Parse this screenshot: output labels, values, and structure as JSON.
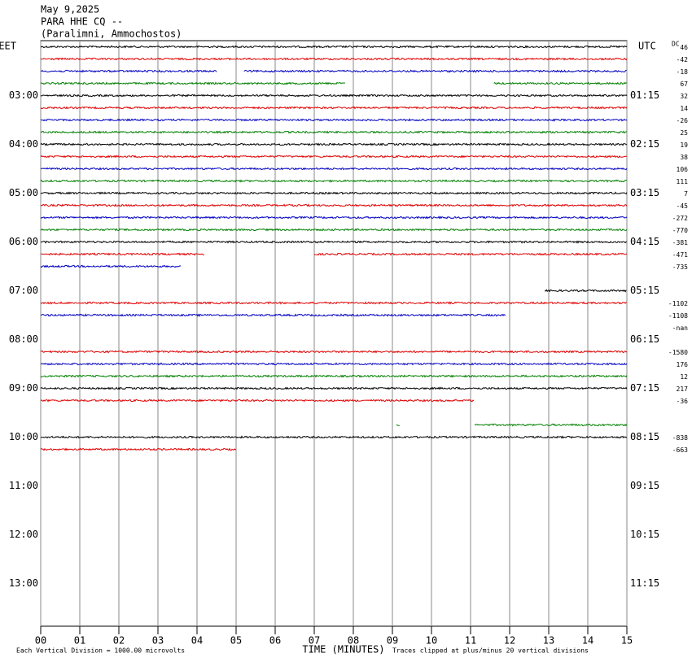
{
  "chart_data": {
    "type": "helicorder",
    "title_lines": [
      "May 9,2025",
      "PARA HHE CQ --",
      "(Paralimni, Ammochostos)"
    ],
    "left_header": "EET",
    "right_header": "UTC",
    "offset_header": "DC",
    "xlabel": "TIME (MINUTES)",
    "footer_left": "Each Vertical Division = 1000.00 microvolts",
    "footer_right": "Traces clipped at plus/minus 20 vertical divisions",
    "xlim": [
      0,
      15
    ],
    "xticks": [
      {
        "value": 0,
        "label": "00"
      },
      {
        "value": 1,
        "label": "01"
      },
      {
        "value": 2,
        "label": "02"
      },
      {
        "value": 3,
        "label": "03"
      },
      {
        "value": 4,
        "label": "04"
      },
      {
        "value": 5,
        "label": "05"
      },
      {
        "value": 6,
        "label": "06"
      },
      {
        "value": 7,
        "label": "07"
      },
      {
        "value": 8,
        "label": "08"
      },
      {
        "value": 9,
        "label": "09"
      },
      {
        "value": 10,
        "label": "10"
      },
      {
        "value": 11,
        "label": "11"
      },
      {
        "value": 12,
        "label": "12"
      },
      {
        "value": 13,
        "label": "13"
      },
      {
        "value": 14,
        "label": "14"
      },
      {
        "value": 15,
        "label": "15"
      }
    ],
    "left_time_labels": [
      "03:00",
      "04:00",
      "05:00",
      "06:00",
      "07:00",
      "08:00",
      "09:00",
      "10:00",
      "11:00",
      "12:00",
      "13:00"
    ],
    "right_time_labels": [
      "01:15",
      "02:15",
      "03:15",
      "04:15",
      "05:15",
      "06:15",
      "07:15",
      "08:15",
      "09:15",
      "10:15",
      "11:15"
    ],
    "colors": [
      "#000000",
      "#e00000",
      "#0000c0",
      "#008000"
    ],
    "traces": [
      {
        "offset": 46,
        "segments": [
          [
            0,
            15
          ]
        ]
      },
      {
        "offset": -42,
        "segments": [
          [
            0,
            15
          ]
        ]
      },
      {
        "offset": -18,
        "segments": [
          [
            0,
            4.5
          ],
          [
            5.2,
            15
          ]
        ]
      },
      {
        "offset": 67,
        "segments": [
          [
            0,
            7.8
          ],
          [
            11.6,
            15
          ]
        ]
      },
      {
        "offset": 32,
        "segments": [
          [
            0,
            15
          ]
        ]
      },
      {
        "offset": 14,
        "segments": [
          [
            0,
            15
          ]
        ]
      },
      {
        "offset": -26,
        "segments": [
          [
            0,
            15
          ]
        ]
      },
      {
        "offset": 25,
        "segments": [
          [
            0,
            15
          ]
        ]
      },
      {
        "offset": 19,
        "segments": [
          [
            0,
            15
          ]
        ]
      },
      {
        "offset": 38,
        "segments": [
          [
            0,
            15
          ]
        ]
      },
      {
        "offset": 106,
        "segments": [
          [
            0,
            15
          ]
        ]
      },
      {
        "offset": 111,
        "segments": [
          [
            0,
            15
          ]
        ]
      },
      {
        "offset": 7,
        "segments": [
          [
            0,
            15
          ]
        ]
      },
      {
        "offset": -45,
        "segments": [
          [
            0,
            15
          ]
        ]
      },
      {
        "offset": -272,
        "segments": [
          [
            0,
            15
          ]
        ]
      },
      {
        "offset": -770,
        "segments": [
          [
            0,
            15
          ]
        ]
      },
      {
        "offset": -381,
        "segments": [
          [
            0,
            15
          ]
        ]
      },
      {
        "offset": -471,
        "segments": [
          [
            0,
            4.2
          ],
          [
            7,
            15
          ]
        ]
      },
      {
        "offset": -735,
        "segments": [
          [
            0,
            3.6
          ]
        ]
      },
      {
        "offset": null,
        "segments": []
      },
      {
        "offset": null,
        "segments": [
          [
            12.9,
            15
          ]
        ]
      },
      {
        "offset": -1102,
        "segments": [
          [
            0,
            15
          ]
        ]
      },
      {
        "offset": -1108,
        "segments": [
          [
            0,
            11.9
          ]
        ]
      },
      {
        "offset": "-nan",
        "segments": []
      },
      {
        "offset": null,
        "segments": []
      },
      {
        "offset": -1580,
        "segments": [
          [
            0,
            15
          ]
        ]
      },
      {
        "offset": 176,
        "segments": [
          [
            0,
            15
          ]
        ]
      },
      {
        "offset": 12,
        "segments": [
          [
            0,
            15
          ]
        ]
      },
      {
        "offset": 217,
        "segments": [
          [
            0,
            15
          ]
        ]
      },
      {
        "offset": -36,
        "segments": [
          [
            0,
            11.1
          ]
        ]
      },
      {
        "offset": null,
        "segments": []
      },
      {
        "offset": null,
        "segments": [
          [
            9.1,
            9.2
          ],
          [
            11.1,
            15
          ]
        ]
      },
      {
        "offset": -838,
        "segments": [
          [
            0,
            15
          ]
        ]
      },
      {
        "offset": -663,
        "segments": [
          [
            0,
            5
          ]
        ]
      }
    ]
  }
}
